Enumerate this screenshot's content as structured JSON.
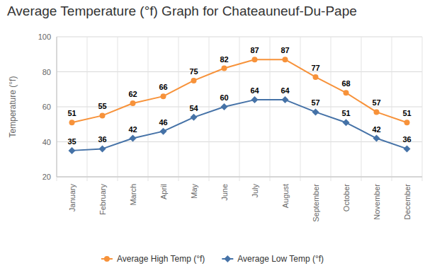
{
  "chart_data": {
    "type": "line",
    "title": "Average Temperature (°f) Graph for Chateauneuf-Du-Pape",
    "y_label": "Temperature (°f)",
    "categories": [
      "January",
      "February",
      "March",
      "April",
      "May",
      "June",
      "July",
      "August",
      "September",
      "October",
      "November",
      "December"
    ],
    "series": [
      {
        "name": "Average High Temp (°f)",
        "color": "#f7923a",
        "marker": "circle",
        "values": [
          51,
          55,
          62,
          66,
          75,
          82,
          87,
          87,
          77,
          68,
          57,
          51
        ]
      },
      {
        "name": "Average Low Temp (°f)",
        "color": "#4572a7",
        "marker": "diamond",
        "values": [
          35,
          36,
          42,
          46,
          54,
          60,
          64,
          64,
          57,
          51,
          42,
          36
        ]
      }
    ],
    "ylim": [
      20,
      100
    ],
    "yticks": [
      20,
      40,
      60,
      80,
      100
    ],
    "grid": true,
    "legend": "bottom",
    "data_labels": true
  }
}
